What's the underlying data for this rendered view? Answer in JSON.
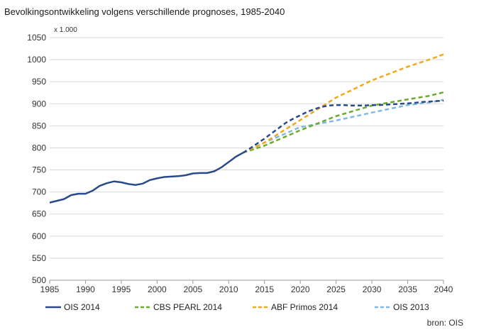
{
  "title": "Bevolkingsontwikkeling volgens verschillende prognoses, 1985-2040",
  "unit_label": "x 1.000",
  "source": "bron: OIS",
  "chart_data": {
    "type": "line",
    "title": "Bevolkingsontwikkeling volgens verschillende prognoses, 1985-2040",
    "xlabel": "",
    "ylabel": "x 1.000",
    "xlim": [
      1985,
      2040
    ],
    "ylim": [
      500,
      1050
    ],
    "x_ticks": [
      1985,
      1990,
      1995,
      2000,
      2005,
      2010,
      2015,
      2020,
      2025,
      2030,
      2035,
      2040
    ],
    "y_ticks": [
      500,
      550,
      600,
      650,
      700,
      750,
      800,
      850,
      900,
      950,
      1000,
      1050
    ],
    "grid": "horizontal",
    "legend_position": "bottom",
    "series": [
      {
        "name": "OIS 2014",
        "color": "#2a4a8b",
        "style": "solid",
        "x": [
          1985,
          1986,
          1987,
          1988,
          1989,
          1990,
          1991,
          1992,
          1993,
          1994,
          1995,
          1996,
          1997,
          1998,
          1999,
          2000,
          2001,
          2002,
          2003,
          2004,
          2005,
          2006,
          2007,
          2008,
          2009,
          2010,
          2011,
          2012,
          2013,
          2014,
          2015,
          2016,
          2017,
          2018,
          2019,
          2020,
          2021,
          2022,
          2023,
          2024,
          2025,
          2026,
          2027,
          2028,
          2029,
          2030,
          2031,
          2032,
          2033,
          2034,
          2035,
          2036,
          2037,
          2038,
          2039,
          2040
        ],
        "y": [
          676,
          680,
          684,
          693,
          696,
          696,
          703,
          714,
          720,
          724,
          722,
          718,
          716,
          719,
          727,
          731,
          734,
          735,
          736,
          738,
          742,
          743,
          743,
          747,
          756,
          768,
          780,
          789,
          799,
          810,
          821,
          833,
          845,
          857,
          866,
          874,
          882,
          888,
          893,
          896,
          897,
          897,
          896,
          896,
          896,
          897,
          897,
          898,
          899,
          900,
          901,
          902,
          904,
          905,
          906,
          907
        ],
        "dash_from_index": 27
      },
      {
        "name": "CBS PEARL 2014",
        "color": "#6aaa2c",
        "style": "dashed",
        "x": [
          2012,
          2015,
          2020,
          2025,
          2030,
          2035,
          2038,
          2040
        ],
        "y": [
          789,
          805,
          840,
          872,
          896,
          910,
          918,
          926
        ]
      },
      {
        "name": "ABF Primos 2014",
        "color": "#f0a81e",
        "style": "dashed",
        "x": [
          2012,
          2015,
          2020,
          2025,
          2030,
          2035,
          2038,
          2040
        ],
        "y": [
          789,
          812,
          863,
          914,
          953,
          984,
          1000,
          1012
        ]
      },
      {
        "name": "OIS 2013",
        "color": "#7fb8e6",
        "style": "dashed",
        "x": [
          2012,
          2015,
          2020,
          2025,
          2030,
          2035,
          2038,
          2040
        ],
        "y": [
          789,
          812,
          847,
          862,
          880,
          897,
          903,
          909
        ]
      }
    ]
  }
}
